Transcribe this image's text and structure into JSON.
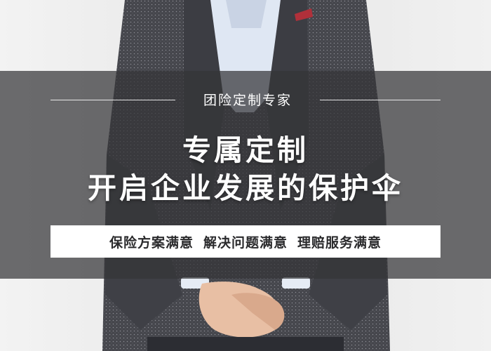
{
  "banner": {
    "tagline": "团险定制专家",
    "title_line1": "专属定制",
    "title_line2": "开启企业发展的保护伞",
    "satisfaction": [
      "保险方案满意",
      "解决问题满意",
      "理赔服务满意"
    ]
  },
  "colors": {
    "overlay": "#3a3a3e",
    "text": "#ffffff",
    "pill_bg": "#ffffff",
    "pill_text": "#2a2a2c",
    "jacket": "#4a4a50",
    "shirt": "#dfe7f3"
  }
}
